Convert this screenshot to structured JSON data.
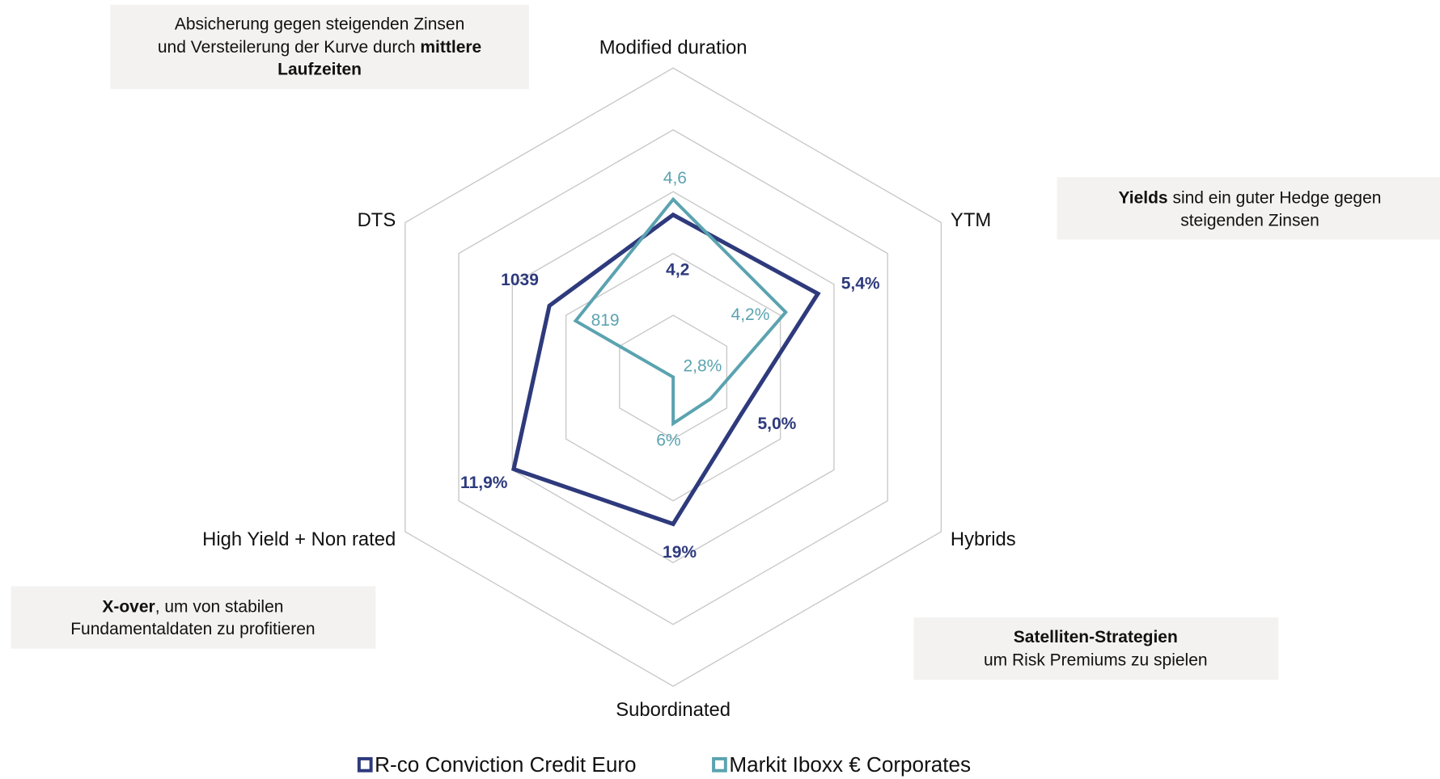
{
  "chart_data": {
    "type": "radar",
    "axes": [
      "Modified duration",
      "YTM",
      "Hybrids",
      "Subordinated",
      "High Yield + Non rated",
      "DTS"
    ],
    "axis_ranges": [
      [
        0,
        8
      ],
      [
        0,
        10
      ],
      [
        0,
        20
      ],
      [
        0,
        40
      ],
      [
        0,
        20
      ],
      [
        0,
        2250
      ]
    ],
    "grid_rings": 5,
    "series": [
      {
        "name": "R-co Conviction Credit Euro",
        "color": "#2e3a7c",
        "values": [
          4.2,
          5.4,
          5.0,
          19,
          11.9,
          1039
        ],
        "value_labels": [
          "4,2",
          "5,4%",
          "5,0%",
          "19%",
          "11,9%",
          "1039"
        ]
      },
      {
        "name": "Markit Iboxx € Corporates",
        "color": "#5ba3b0",
        "values": [
          4.6,
          4.2,
          2.8,
          6,
          0,
          819
        ],
        "value_labels": [
          "4,6",
          "4,2%",
          "2,8%",
          "6%",
          null,
          "819"
        ]
      }
    ],
    "annotations": [
      {
        "lines": [
          [
            {
              "text": "Absicherung gegen steigenden Zinsen",
              "bold": false
            }
          ],
          [
            {
              "text": "und Versteilerung der Kurve durch ",
              "bold": false
            },
            {
              "text": "mittlere",
              "bold": true
            }
          ],
          [
            {
              "text": "Laufzeiten",
              "bold": true
            }
          ]
        ]
      },
      {
        "lines": [
          [
            {
              "text": "Yields",
              "bold": true
            },
            {
              "text": " sind ein guter Hedge gegen",
              "bold": false
            }
          ],
          [
            {
              "text": "steigenden Zinsen",
              "bold": false
            }
          ]
        ]
      },
      {
        "lines": [
          [
            {
              "text": "X-over",
              "bold": true
            },
            {
              "text": ", um von stabilen",
              "bold": false
            }
          ],
          [
            {
              "text": "Fundamentaldaten zu profitieren",
              "bold": false
            }
          ]
        ]
      },
      {
        "lines": [
          [
            {
              "text": "Satelliten-Strategien",
              "bold": true
            }
          ],
          [
            {
              "text": "um Risk Premiums zu spielen",
              "bold": false
            }
          ]
        ]
      }
    ],
    "legend": "bottom"
  }
}
